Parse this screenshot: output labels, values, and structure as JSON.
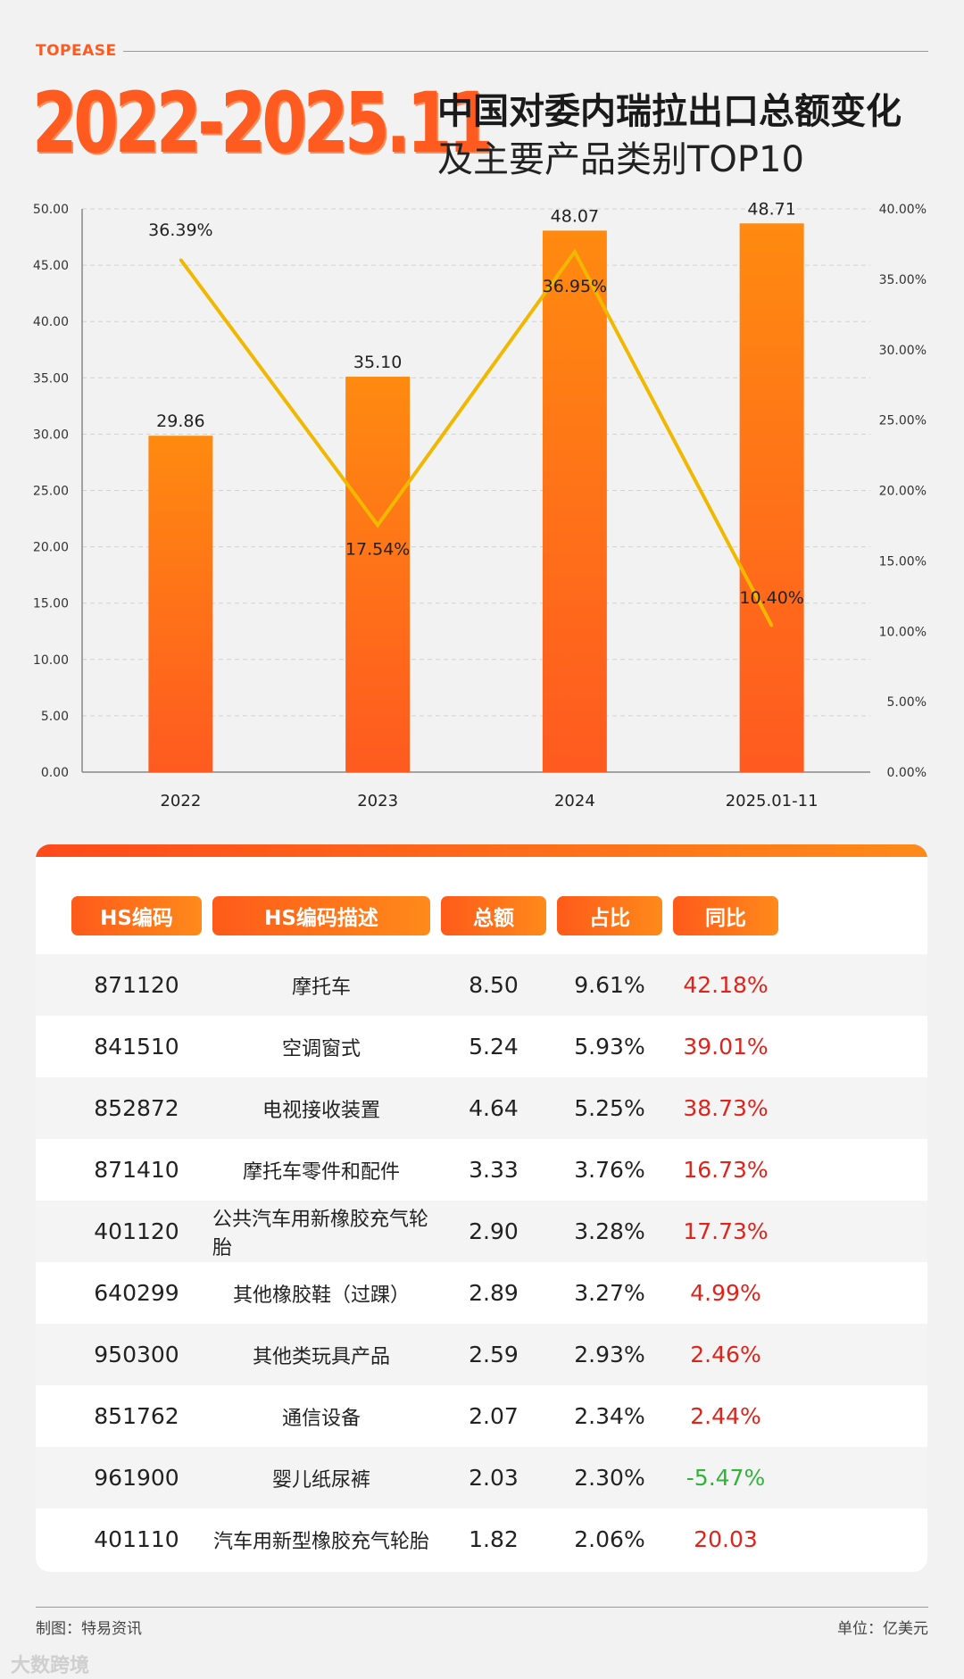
{
  "header": {
    "brand": "TOPEASE",
    "big_year": "2022-2025.11",
    "title_line1": "中国对委内瑞拉出口总额变化",
    "title_line2": "及主要产品类别TOP10"
  },
  "chart_data": {
    "type": "bar",
    "categories": [
      "2022",
      "2023",
      "2024",
      "2025.01-11"
    ],
    "series": [
      {
        "type": "bar",
        "values": [
          29.86,
          35.1,
          48.07,
          48.71
        ],
        "labels": [
          "29.86",
          "35.10",
          "48.07",
          "48.71"
        ],
        "color": "#ff6a1a"
      },
      {
        "type": "line",
        "axis": "right",
        "values": [
          36.39,
          17.54,
          36.95,
          10.4
        ],
        "labels": [
          "36.39%",
          "17.54%",
          "36.95%",
          "10.40%"
        ],
        "color": "#f0b800"
      }
    ],
    "ylim": [
      0,
      50
    ],
    "y2lim": [
      0,
      40
    ],
    "yticks": [
      "0.00",
      "5.00",
      "10.00",
      "15.00",
      "20.00",
      "25.00",
      "30.00",
      "35.00",
      "40.00",
      "45.00",
      "50.00"
    ],
    "y2ticks": [
      "0.00%",
      "5.00%",
      "10.00%",
      "15.00%",
      "20.00%",
      "25.00%",
      "30.00%",
      "35.00%",
      "40.00%"
    ],
    "grid": true
  },
  "table": {
    "headers": [
      "HS编码",
      "HS编码描述",
      "总额",
      "占比",
      "同比"
    ],
    "rows": [
      [
        "871120",
        "摩托车",
        "8.50",
        "9.61%",
        "42.18%"
      ],
      [
        "841510",
        "空调窗式",
        "5.24",
        "5.93%",
        "39.01%"
      ],
      [
        "852872",
        "电视接收装置",
        "4.64",
        "5.25%",
        "38.73%"
      ],
      [
        "871410",
        "摩托车零件和配件",
        "3.33",
        "3.76%",
        "16.73%"
      ],
      [
        "401120",
        "公共汽车用新橡胶充气轮胎",
        "2.90",
        "3.28%",
        "17.73%"
      ],
      [
        "640299",
        "其他橡胶鞋（过踝）",
        "2.89",
        "3.27%",
        "4.99%"
      ],
      [
        "950300",
        "其他类玩具产品",
        "2.59",
        "2.93%",
        "2.46%"
      ],
      [
        "851762",
        "通信设备",
        "2.07",
        "2.34%",
        "2.44%"
      ],
      [
        "961900",
        "婴儿纸尿裤",
        "2.03",
        "2.30%",
        "-5.47%"
      ],
      [
        "401110",
        "汽车用新型橡胶充气轮胎",
        "1.82",
        "2.06%",
        "20.03"
      ]
    ]
  },
  "footer": {
    "left": "制图：特易资讯",
    "right": "单位：亿美元",
    "watermark": "大数跨境"
  },
  "colors": {
    "accent": "#ff5a1f",
    "line": "#f0b800",
    "positive": "#e0231b",
    "negative": "#32b33a"
  }
}
